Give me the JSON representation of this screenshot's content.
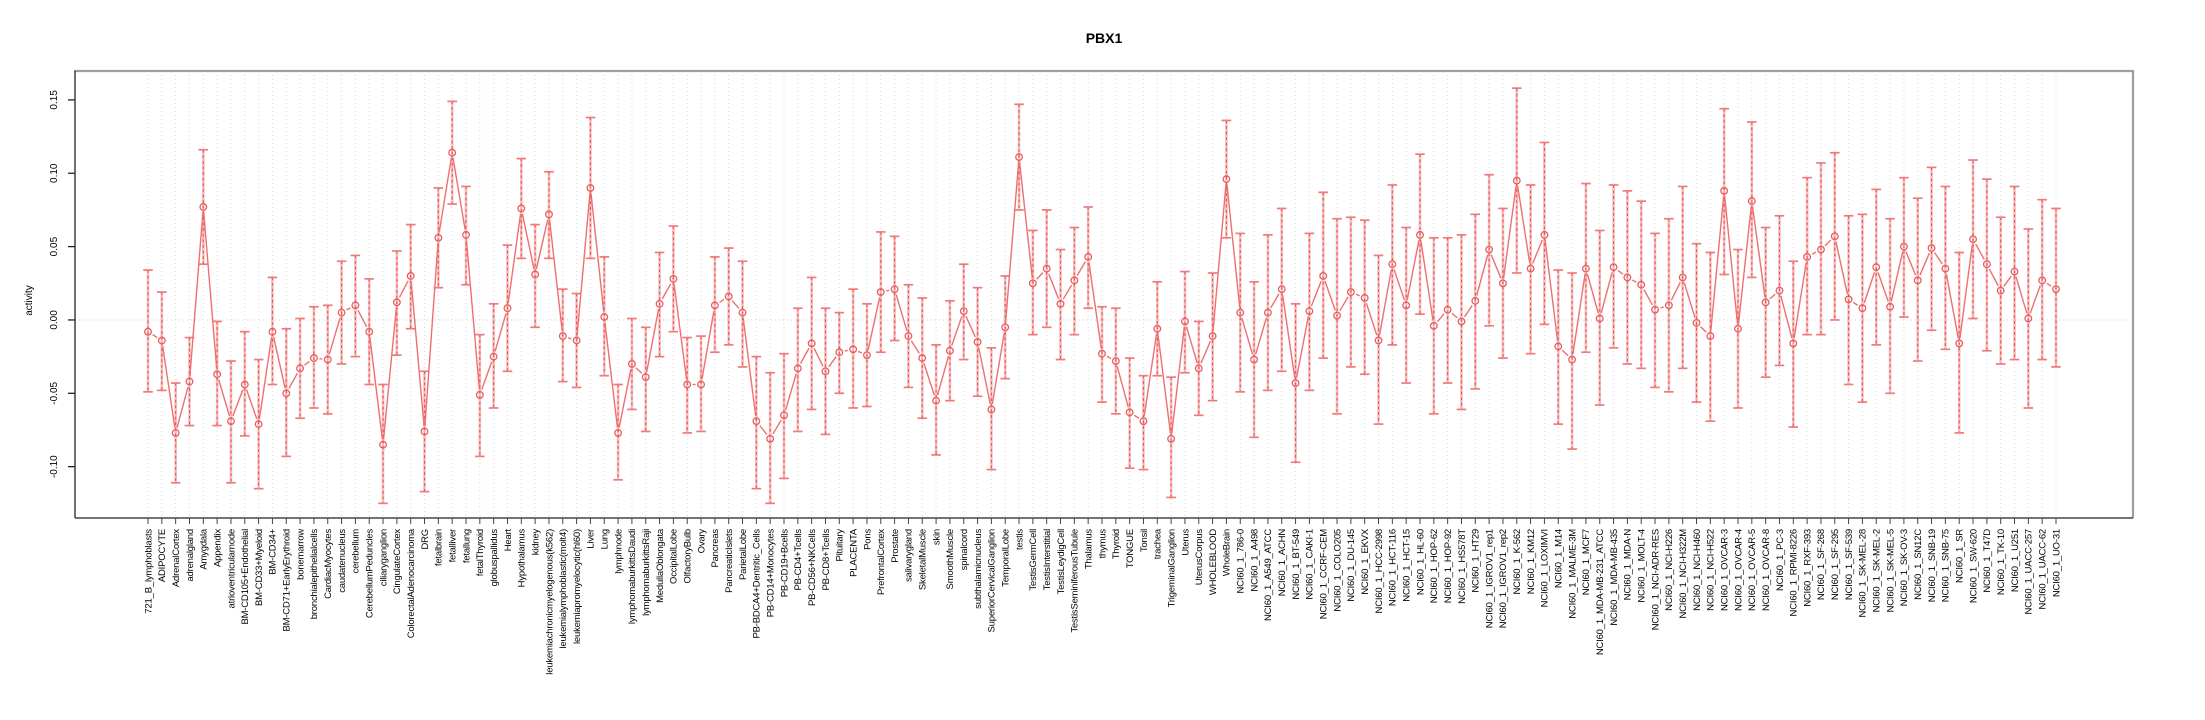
{
  "chart_data": {
    "type": "line",
    "title": "PBX1",
    "ylabel": "activity",
    "xlabel": "",
    "legend": "none",
    "grid": "vertical-dotted-per-category, dotted zero line",
    "marker": "open-circle with error bars",
    "ylim": [
      -0.135,
      0.1697
    ],
    "yticks": [
      0.15,
      0.1,
      0.05,
      0.0,
      -0.05,
      -0.1
    ],
    "ytick_labels": [
      "0.15",
      "0.10",
      "0.05",
      "0.00",
      "-0.05",
      "-0.10"
    ],
    "colors": {
      "series": "#ef6f6f",
      "error_bar_fill": "rgba(240,128,128,0.5)",
      "error_bar_dash": "#e85353",
      "error_cap": "#ef7a7a",
      "marker_stroke": "#e45f5f",
      "gridline": "#d9d9d9",
      "zero_line": "#cfcfcf",
      "box": "#9e9e9e",
      "axis": "#222222"
    },
    "categories": [
      "721_B_lymphoblasts",
      "ADIPOCYTE",
      "AdrenalCortex",
      "adrenalgland",
      "Amygdala",
      "Appendix",
      "atrioventricularnode",
      "BM-CD105+Endothelial",
      "BM-CD33+Myeloid",
      "BM-CD34+",
      "BM-CD71+EarlyErythroid",
      "bonemarrow",
      "bronchialepithelialcells",
      "CardiacMyocytes",
      "caudatenucleus",
      "cerebellum",
      "CerebellumPeduncles",
      "ciliaryganglion",
      "CingulateCortex",
      "ColorectalAdenocarcinoma",
      "DRG",
      "fetalbrain",
      "fetalliver",
      "fetallung",
      "fetalThyroid",
      "globuspallidus",
      "Heart",
      "Hypothalamus",
      "kidney",
      "leukemiachronicmyelogenous(k562)",
      "leukemialymphoblastic(molt4)",
      "leukemiapromyelocytic(hl60)",
      "Liver",
      "Lung",
      "lymphnode",
      "lymphomaburkittsDaudi",
      "lymphomaburkittsRaji",
      "MedullaOblongata",
      "OccipitalLobe",
      "OlfactoryBulb",
      "Ovary",
      "Pancreas",
      "PancreaticIslets",
      "ParietalLobe",
      "PB-BDCA4+Dentritic_Cells",
      "PB-CD14+Monocytes",
      "PB-CD19+Bcells",
      "PB-CD4+Tcells",
      "PB-CD56+NKCells",
      "PB-CD8+Tcells",
      "Pituitary",
      "PLACENTA",
      "Pons",
      "PrefrontalCortex",
      "Prostate",
      "salivarygland",
      "SkeletalMuscle",
      "skin",
      "SmoothMuscle",
      "spinalcord",
      "subthalamicnucleus",
      "SuperiorCervicalGanglion",
      "TemporalLobe",
      "testis",
      "TestisGermCell",
      "TestisInterstitial",
      "TestisLeydigCell",
      "TestisSeminiferousTubule",
      "Thalamus",
      "thymus",
      "Thyroid",
      "TONGUE",
      "Tonsil",
      "trachea",
      "TrigeminalGanglion",
      "Uterus",
      "UterusCorpus",
      "WHOLEBLOOD",
      "WholeBrain",
      "NCI60_1_786-0",
      "NCI60_1_A498",
      "NCI60_1_A549_ATCC",
      "NCI60_1_ACHN",
      "NCI60_1_BT-549",
      "NCI60_1_CAKI-1",
      "NCI60_1_CCRF-CEM",
      "NCI60_1_COLO205",
      "NCI60_1_DU-145",
      "NCI60_1_EKVX",
      "NCI60_1_HCC-2998",
      "NCI60_1_HCT-116",
      "NCI60_1_HCT-15",
      "NCI60_1_HL-60",
      "NCI60_1_HOP-62",
      "NCI60_1_HOP-92",
      "NCI60_1_HS578T",
      "NCI60_1_HT29",
      "NCI60_1_IGROV1_rep1",
      "NCI60_1_IGROV1_rep2",
      "NCI60_1_K-562",
      "NCI60_1_KM12",
      "NCI60_1_LOXIMVI",
      "NCI60_1_M14",
      "NCI60_1_MALME-3M",
      "NCI60_1_MCF7",
      "NCI60_1_MDA-MB-231_ATCC",
      "NCI60_1_MDA-MB-435",
      "NCI60_1_MDA-N",
      "NCI60_1_MOLT-4",
      "NCI60_1_NCI-ADR-RES",
      "NCI60_1_NCI-H226",
      "NCI60_1_NCI-H322M",
      "NCI60_1_NCI-H460",
      "NCI60_1_NCI-H522",
      "NCI60_1_OVCAR-3",
      "NCI60_1_OVCAR-4",
      "NCI60_1_OVCAR-5",
      "NCI60_1_OVCAR-8",
      "NCI60_1_PC-3",
      "NCI60_1_RPMI-8226",
      "NCI60_1_RXF-393",
      "NCI60_1_SF-268",
      "NCI60_1_SF-295",
      "NCI60_1_SF-539",
      "NCI60_1_SK-MEL-28",
      "NCI60_1_SK-MEL-2",
      "NCI60_1_SK-MEL-5",
      "NCI60_1_SK-OV-3",
      "NCI60_1_SN12C",
      "NCI60_1_SNB-19",
      "NCI60_1_SNB-75",
      "NCI60_1_SR",
      "NCI60_1_SW-620",
      "NCI60_1_T47D",
      "NCI60_1_TK-10",
      "NCI60_1_U251",
      "NCI60_1_UACC-257",
      "NCI60_1_UACC-62",
      "NCI60_1_UO-31"
    ],
    "values": [
      -0.008,
      -0.014,
      -0.077,
      -0.042,
      0.077,
      -0.037,
      -0.069,
      -0.044,
      -0.071,
      -0.008,
      -0.05,
      -0.033,
      -0.026,
      -0.027,
      0.005,
      0.01,
      -0.008,
      -0.085,
      0.012,
      0.03,
      -0.076,
      0.056,
      0.114,
      0.058,
      -0.051,
      -0.025,
      0.008,
      0.076,
      0.031,
      0.072,
      -0.011,
      -0.014,
      0.09,
      0.002,
      -0.077,
      -0.03,
      -0.039,
      0.011,
      0.028,
      -0.044,
      -0.044,
      0.01,
      0.016,
      0.005,
      -0.069,
      -0.081,
      -0.065,
      -0.033,
      -0.016,
      -0.035,
      -0.022,
      -0.02,
      -0.024,
      0.019,
      0.021,
      -0.011,
      -0.026,
      -0.055,
      -0.021,
      0.006,
      -0.015,
      -0.061,
      -0.005,
      0.111,
      0.025,
      0.035,
      0.011,
      0.027,
      0.043,
      -0.023,
      -0.028,
      -0.063,
      -0.069,
      -0.006,
      -0.081,
      -0.001,
      -0.033,
      -0.011,
      0.096,
      0.005,
      -0.027,
      0.005,
      0.021,
      -0.043,
      0.006,
      0.03,
      0.003,
      0.019,
      0.015,
      -0.014,
      0.038,
      0.01,
      0.058,
      -0.004,
      0.007,
      -0.001,
      0.013,
      0.048,
      0.025,
      0.095,
      0.035,
      0.058,
      -0.018,
      -0.027,
      0.035,
      0.001,
      0.036,
      0.029,
      0.024,
      0.007,
      0.01,
      0.029,
      -0.002,
      -0.011,
      0.088,
      -0.006,
      0.081,
      0.012,
      0.02,
      -0.016,
      0.043,
      0.048,
      0.057,
      0.014,
      0.008,
      0.036,
      0.009,
      0.05,
      0.027,
      0.049,
      0.035,
      -0.016,
      0.055,
      0.038,
      0.02,
      0.033,
      0.001,
      0.027,
      0.021
    ],
    "err_low": [
      -0.049,
      -0.048,
      -0.111,
      -0.072,
      0.038,
      -0.072,
      -0.111,
      -0.079,
      -0.115,
      -0.044,
      -0.093,
      -0.067,
      -0.06,
      -0.064,
      -0.03,
      -0.025,
      -0.044,
      -0.125,
      -0.024,
      -0.006,
      -0.117,
      0.022,
      0.079,
      0.024,
      -0.093,
      -0.06,
      -0.035,
      0.042,
      -0.005,
      0.042,
      -0.042,
      -0.046,
      0.042,
      -0.038,
      -0.109,
      -0.061,
      -0.076,
      -0.025,
      -0.008,
      -0.077,
      -0.076,
      -0.022,
      -0.017,
      -0.032,
      -0.115,
      -0.125,
      -0.108,
      -0.076,
      -0.061,
      -0.078,
      -0.05,
      -0.06,
      -0.059,
      -0.022,
      -0.014,
      -0.046,
      -0.067,
      -0.092,
      -0.055,
      -0.027,
      -0.052,
      -0.102,
      -0.04,
      0.075,
      -0.01,
      -0.005,
      -0.027,
      -0.01,
      0.008,
      -0.056,
      -0.064,
      -0.101,
      -0.102,
      -0.038,
      -0.121,
      -0.036,
      -0.065,
      -0.055,
      0.056,
      -0.049,
      -0.08,
      -0.048,
      -0.035,
      -0.097,
      -0.048,
      -0.026,
      -0.064,
      -0.032,
      -0.037,
      -0.071,
      -0.017,
      -0.043,
      0.004,
      -0.064,
      -0.043,
      -0.061,
      -0.047,
      -0.004,
      -0.026,
      0.032,
      -0.023,
      -0.003,
      -0.071,
      -0.088,
      -0.022,
      -0.058,
      -0.019,
      -0.03,
      -0.033,
      -0.046,
      -0.049,
      -0.033,
      -0.056,
      -0.069,
      0.031,
      -0.06,
      0.029,
      -0.039,
      -0.031,
      -0.073,
      -0.01,
      -0.01,
      0.0,
      -0.044,
      -0.056,
      -0.017,
      -0.05,
      0.002,
      -0.028,
      -0.007,
      -0.02,
      -0.077,
      0.001,
      -0.021,
      -0.03,
      -0.027,
      -0.06,
      -0.027,
      -0.032
    ],
    "err_high": [
      0.034,
      0.019,
      -0.043,
      -0.012,
      0.116,
      -0.001,
      -0.028,
      -0.008,
      -0.027,
      0.029,
      -0.006,
      0.001,
      0.009,
      0.01,
      0.04,
      0.044,
      0.028,
      -0.044,
      0.047,
      0.065,
      -0.035,
      0.09,
      0.149,
      0.091,
      -0.01,
      0.011,
      0.051,
      0.11,
      0.065,
      0.101,
      0.021,
      0.018,
      0.138,
      0.043,
      -0.044,
      0.001,
      -0.005,
      0.046,
      0.064,
      -0.012,
      -0.011,
      0.043,
      0.049,
      0.04,
      -0.025,
      -0.036,
      -0.023,
      0.008,
      0.029,
      0.008,
      0.005,
      0.021,
      0.011,
      0.06,
      0.057,
      0.024,
      0.015,
      -0.017,
      0.013,
      0.038,
      0.022,
      -0.019,
      0.03,
      0.147,
      0.061,
      0.075,
      0.048,
      0.063,
      0.077,
      0.009,
      0.008,
      -0.026,
      -0.038,
      0.026,
      -0.039,
      0.033,
      -0.001,
      0.032,
      0.136,
      0.059,
      0.026,
      0.058,
      0.076,
      0.011,
      0.059,
      0.087,
      0.069,
      0.07,
      0.068,
      0.044,
      0.092,
      0.063,
      0.113,
      0.056,
      0.056,
      0.058,
      0.072,
      0.099,
      0.076,
      0.158,
      0.092,
      0.121,
      0.034,
      0.032,
      0.093,
      0.061,
      0.092,
      0.088,
      0.081,
      0.059,
      0.069,
      0.091,
      0.052,
      0.046,
      0.144,
      0.048,
      0.135,
      0.063,
      0.071,
      0.04,
      0.097,
      0.107,
      0.114,
      0.071,
      0.072,
      0.089,
      0.069,
      0.097,
      0.083,
      0.104,
      0.091,
      0.046,
      0.109,
      0.096,
      0.07,
      0.091,
      0.062,
      0.082,
      0.076
    ]
  }
}
